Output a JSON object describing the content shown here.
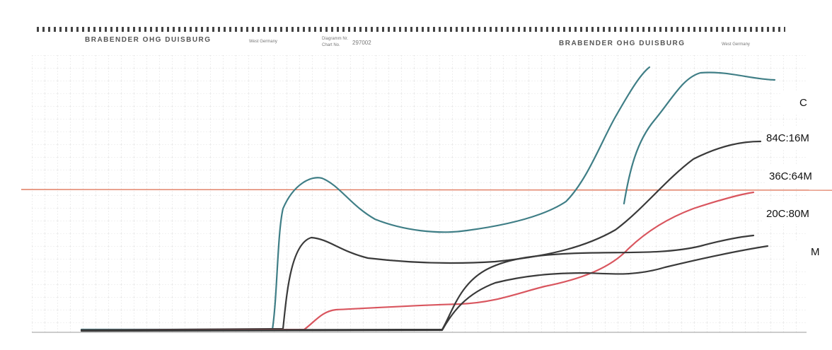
{
  "header": {
    "brand_left": "BRABENDER OHG DUISBURG",
    "country_left": "West Germany",
    "diagram_label": "Diagramm Nr.",
    "chart_label": "Chart No.",
    "chart_number": "297002",
    "brand_right": "BRABENDER OHG DUISBURG",
    "country_right": "West Germany"
  },
  "curve_labels": [
    "C",
    "84C:16M",
    "36C:64M",
    "20C:80M",
    "M"
  ]
}
